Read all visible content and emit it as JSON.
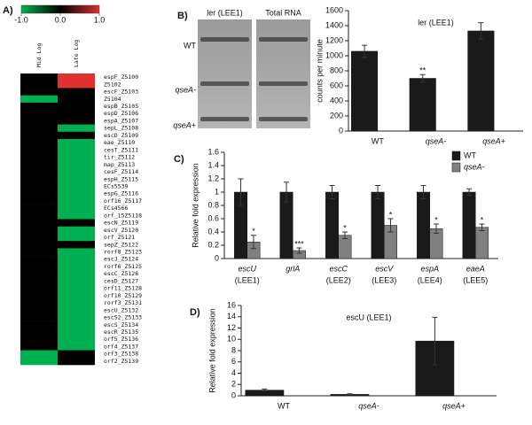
{
  "chart_data": [
    {
      "type": "heatmap",
      "panel_label": "A)",
      "zlim": [
        -1,
        1
      ],
      "colors": [
        "#00b050",
        "#000000",
        "#e03030"
      ],
      "colorbar_ticks": [
        {
          "value": -1,
          "label": "-1.0"
        },
        {
          "value": 0,
          "label": "0.0"
        },
        {
          "value": 1,
          "label": "1.0"
        }
      ],
      "rows": [
        "espF_Z5100",
        "Z5102",
        "escF_Z5103",
        "Z5104",
        "espB_Z5105",
        "espD_Z5106",
        "espA_Z5107",
        "sepL_Z5108",
        "escD_Z5109",
        "eae_Z5110",
        "cesT_Z5111",
        "tir_Z5112",
        "map_Z5113",
        "cesF_Z5114",
        "espH_Z5115",
        "ECs5539",
        "espG_Z5116",
        "orf16_Z5117",
        "ECs4566",
        "orf_15Z5118",
        "escN_Z5119",
        "escV_Z5120",
        "orf_Z5121",
        "sepZ_Z5122",
        "rorf8_Z5123",
        "escJ_Z5124",
        "rorf6_Z5125",
        "escC_Z5126",
        "cesD_Z5127",
        "orf11_Z5128",
        "orf10_Z5129",
        "rorf3_Z5131",
        "escU_Z5132",
        "escS2_Z5133",
        "escS_Z5134",
        "escR_Z5135",
        "orf5_Z5136",
        "orf4_Z5137",
        "orf3_Z5138",
        "orf2_Z5139"
      ],
      "series": [
        {
          "name": "Mid Log",
          "values": [
            0,
            0,
            0,
            -1,
            0,
            0,
            0,
            0,
            0,
            0,
            0,
            0,
            0,
            0,
            0,
            0,
            0,
            0,
            0,
            0,
            0,
            0,
            0,
            0,
            0,
            0,
            0,
            0,
            0,
            0,
            0,
            0,
            0,
            0,
            0,
            0,
            0,
            0,
            -1,
            -1
          ]
        },
        {
          "name": "Late Log",
          "values": [
            1,
            1,
            0,
            0,
            0,
            0,
            0,
            -1,
            0,
            -1,
            -1,
            -1,
            -1,
            -1,
            -1,
            -1,
            -1,
            -1,
            -1,
            -1,
            0,
            -1,
            -1,
            0,
            -1,
            -1,
            -1,
            -1,
            -1,
            -1,
            -1,
            -1,
            -1,
            -1,
            -1,
            -1,
            -1,
            -1,
            0,
            0
          ]
        }
      ]
    },
    {
      "type": "image",
      "panel_label": "B)",
      "lane_labels": [
        "ler (LEE1)",
        "Total RNA"
      ],
      "row_labels": [
        "WT",
        "qseA-",
        "qseA+"
      ]
    },
    {
      "type": "bar",
      "title": "ler (LEE1)",
      "y_label": "counts per minute",
      "categories": [
        "WT",
        "qseA-",
        "qseA+"
      ],
      "values": [
        1060,
        700,
        1330
      ],
      "errors": [
        80,
        50,
        110
      ],
      "significance": [
        null,
        "**",
        null
      ],
      "color": "#1a1a1a",
      "ylim": [
        0,
        1600
      ],
      "yticks": [
        0,
        200,
        400,
        600,
        800,
        1000,
        1200,
        1400,
        1600
      ]
    },
    {
      "type": "bar",
      "panel_label": "C)",
      "y_label": "Relative fold expression",
      "categories": [
        "escU",
        "grlA",
        "escC",
        "escV",
        "espA",
        "eaeA"
      ],
      "category_notes": [
        "(LEE1)",
        null,
        "(LEE2)",
        "(LEE3)",
        "(LEE4)",
        "(LEE5)"
      ],
      "series": [
        {
          "name": "WT",
          "color": "#1a1a1a",
          "values": [
            1,
            1,
            1,
            1,
            1,
            1
          ],
          "errors": [
            0.2,
            0.15,
            0.1,
            0.1,
            0.1,
            0.05
          ]
        },
        {
          "name": "qseA-",
          "color": "#808080",
          "values": [
            0.25,
            0.12,
            0.35,
            0.5,
            0.45,
            0.47
          ],
          "errors": [
            0.1,
            0.04,
            0.05,
            0.1,
            0.07,
            0.05
          ],
          "significance": [
            "*",
            "***",
            "*",
            "*",
            "*",
            "*"
          ]
        }
      ],
      "legend": "upper right",
      "ylim": [
        0,
        1.6
      ],
      "yticks": [
        0,
        0.2,
        0.4,
        0.6,
        0.8,
        1,
        1.2,
        1.4,
        1.6
      ]
    },
    {
      "type": "bar",
      "panel_label": "D)",
      "title": "escU (LEE1)",
      "y_label": "Relative fold expression",
      "categories": [
        "WT",
        "qseA-",
        "qseA+"
      ],
      "values": [
        1,
        0.25,
        9.7
      ],
      "errors": [
        0.2,
        0.1,
        4.2
      ],
      "color": "#1a1a1a",
      "ylim": [
        0,
        16
      ],
      "yticks": [
        0,
        2,
        4,
        6,
        8,
        10,
        12,
        14,
        16
      ]
    }
  ]
}
